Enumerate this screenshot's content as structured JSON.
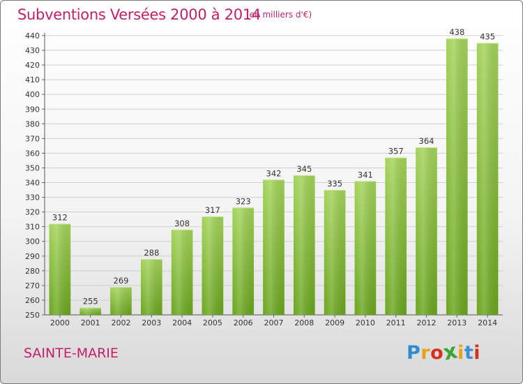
{
  "title": "Subventions Versées 2000 à 2014",
  "subtitle": "(en milliers d'€)",
  "place": "SAINTE-MARIE",
  "logo": {
    "letters": [
      "P",
      "r",
      "o",
      "x",
      "i",
      "t",
      "i"
    ],
    "colors": [
      "#2e8fd0",
      "#e8a31c",
      "#d6301f",
      "#3aa535",
      "#e8a31c",
      "#3b8fd3",
      "#d6301f"
    ]
  },
  "colors": {
    "bar_light": "#a3d35a",
    "bar_dark": "#6aa51e",
    "grid": "#cfcfcf",
    "accent": "#c0206a"
  },
  "chart_data": {
    "type": "bar",
    "title": "Subventions Versées 2000 à 2014",
    "subtitle": "(en milliers d'€)",
    "xlabel": "",
    "ylabel": "",
    "categories": [
      "2000",
      "2001",
      "2002",
      "2003",
      "2004",
      "2005",
      "2006",
      "2007",
      "2008",
      "2009",
      "2010",
      "2011",
      "2012",
      "2013",
      "2014"
    ],
    "values": [
      312,
      255,
      269,
      288,
      308,
      317,
      323,
      342,
      345,
      335,
      341,
      357,
      364,
      438,
      435
    ],
    "ylim": [
      250,
      440
    ],
    "yticks": [
      250,
      260,
      270,
      280,
      290,
      300,
      310,
      320,
      330,
      340,
      350,
      360,
      370,
      380,
      390,
      400,
      410,
      420,
      430,
      440
    ],
    "grid": true,
    "legend": "none"
  }
}
